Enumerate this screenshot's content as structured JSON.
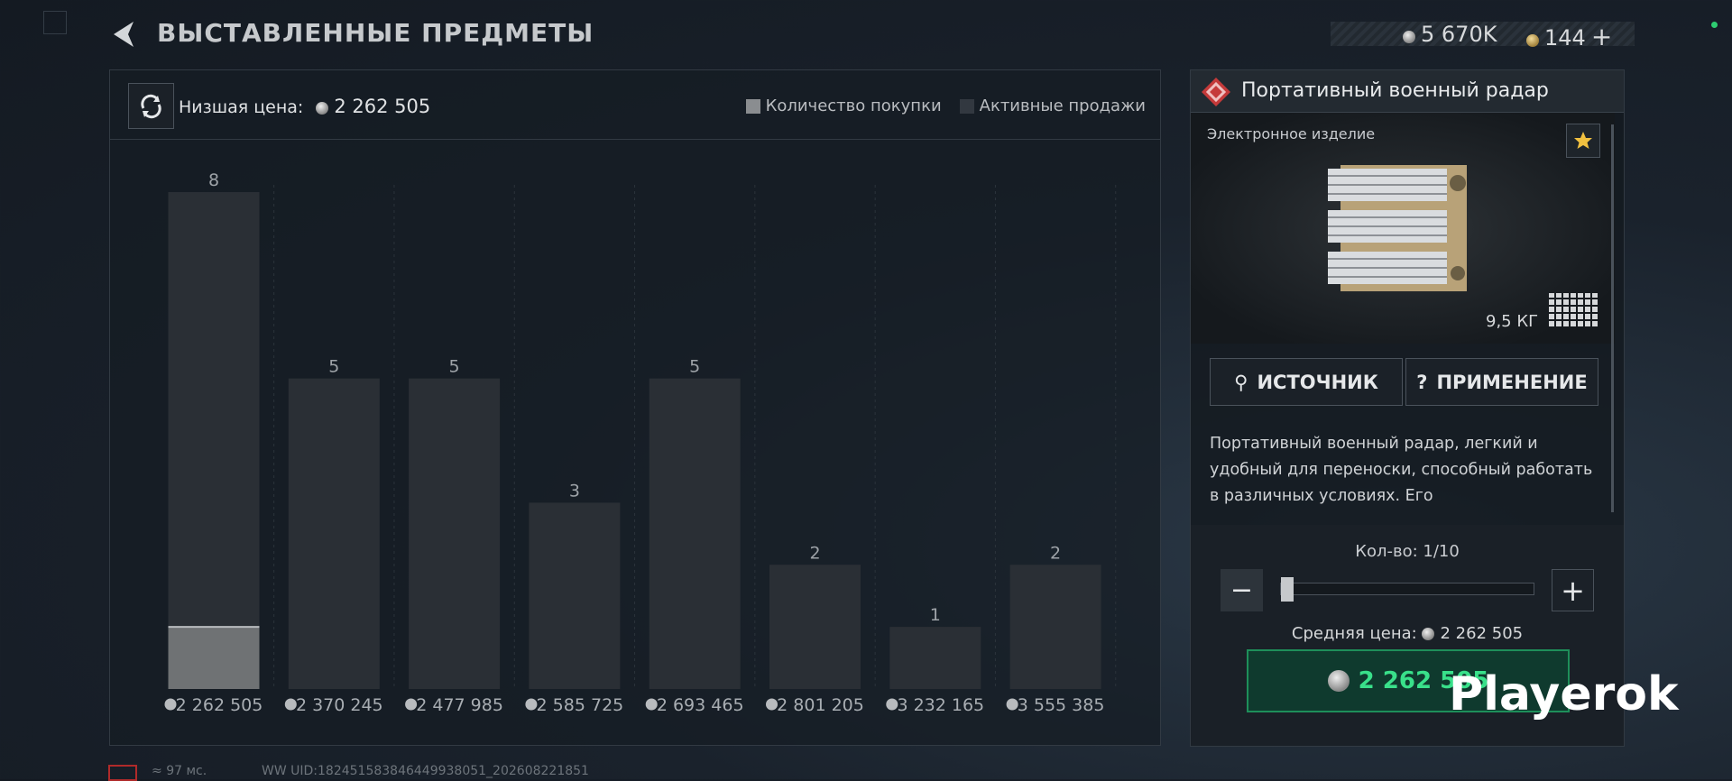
{
  "header": {
    "title": "ВЫСТАВЛЕННЫЕ ПРЕДМЕТЫ",
    "silver": "5 670K",
    "gold": "144"
  },
  "market": {
    "lowest_price_label": "Низшая цена:",
    "lowest_price": "2 262 505"
  },
  "chart_data": {
    "type": "bar",
    "categories": [
      "2 262 505",
      "2 370 245",
      "2 477 985",
      "2 585 725",
      "2 693 465",
      "2 801 205",
      "3 232 165",
      "3 555 385"
    ],
    "series": [
      {
        "name": "Количество покупки",
        "color": "#6f7274",
        "values": [
          1,
          0,
          0,
          0,
          0,
          0,
          0,
          0
        ]
      },
      {
        "name": "Активные продажи",
        "color": "#2a2f35",
        "values": [
          8,
          5,
          5,
          3,
          5,
          2,
          1,
          2
        ]
      }
    ],
    "ylim": [
      0,
      8
    ]
  },
  "item": {
    "name": "Портативный военный радар",
    "category": "Электронное изделие",
    "weight": "9,5 КГ",
    "source_button": "ИСТОЧНИК",
    "usage_button": "ПРИМЕНЕНИЕ",
    "description": "Портативный военный радар, легкий и удобный для переноски, способный работать в различных условиях. Его",
    "quantity": "Кол-во: 1/10",
    "avg_price_label": "Средняя цена:",
    "avg_price": "2 262 505",
    "buy_price": "2 262 505"
  },
  "footer": {
    "ping": "97 мс.",
    "uid": "WW UID:182451583846449938051_202608221851"
  },
  "watermark": "Playerok"
}
